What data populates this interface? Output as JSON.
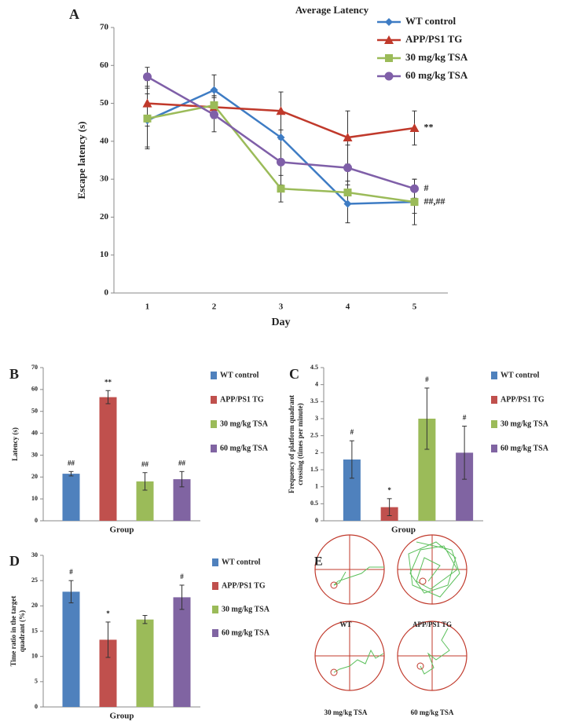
{
  "chart_data": [
    {
      "type": "line",
      "panel": "A",
      "title": "Average Latency",
      "xlabel": "Day",
      "ylabel": "Escape latency (s)",
      "categories": [
        "1",
        "2",
        "3",
        "4",
        "5"
      ],
      "ylim": [
        0,
        70
      ],
      "yticks": [
        0,
        10,
        20,
        30,
        40,
        50,
        60,
        70
      ],
      "series": [
        {
          "name": "WT control",
          "color": "#3e7cc4",
          "marker": "diamond",
          "values": [
            45.5,
            53.5,
            41,
            23.5,
            24
          ],
          "errors": [
            7,
            4,
            7,
            5,
            6
          ]
        },
        {
          "name": "APP/PS1 TG",
          "color": "#c0392b",
          "marker": "triangle",
          "values": [
            50,
            49,
            48,
            41,
            43.5
          ],
          "errors": [
            6,
            3,
            5,
            7,
            4.5
          ],
          "end_label": "**"
        },
        {
          "name": "30 mg/kg TSA",
          "color": "#9bbb59",
          "marker": "square",
          "values": [
            46,
            49.5,
            27.5,
            26.5,
            24
          ],
          "errors": [
            8,
            2.5,
            3.5,
            3,
            3
          ],
          "end_label": "##,##"
        },
        {
          "name": "60 mg/kg TSA",
          "color": "#7f5fa8",
          "marker": "circle",
          "values": [
            57,
            47,
            34.5,
            33,
            27.5
          ],
          "errors": [
            2.5,
            4.5,
            6,
            6,
            2.5
          ],
          "end_label": "#"
        }
      ]
    },
    {
      "type": "bar",
      "panel": "B",
      "xlabel": "Group",
      "ylabel": [
        "Latency (s)"
      ],
      "categories": [
        "WT control",
        "APP/PS1 TG",
        "30 mg/kg TSA",
        "60 mg/kg TSA"
      ],
      "colors": [
        "#4f81bd",
        "#c0504d",
        "#9bbb59",
        "#8064a2"
      ],
      "values": [
        21.5,
        56.5,
        18,
        19
      ],
      "errors": [
        1,
        3,
        4,
        3.5
      ],
      "annotations": [
        "##",
        "**",
        "##",
        "##"
      ],
      "ylim": [
        0,
        70
      ],
      "yticks": [
        0,
        10,
        20,
        30,
        40,
        50,
        60,
        70
      ]
    },
    {
      "type": "bar",
      "panel": "C",
      "xlabel": "Group",
      "ylabel": [
        "Frequency of platform quadrant",
        "crossing (times per minute)"
      ],
      "categories": [
        "WT control",
        "APP/PS1 TG",
        "30 mg/kg TSA",
        "60 mg/kg TSA"
      ],
      "colors": [
        "#4f81bd",
        "#c0504d",
        "#9bbb59",
        "#8064a2"
      ],
      "values": [
        1.8,
        0.4,
        3.0,
        2.0
      ],
      "errors": [
        0.55,
        0.25,
        0.9,
        0.78
      ],
      "annotations": [
        "#",
        "*",
        "#",
        "#"
      ],
      "ylim": [
        0,
        4.5
      ],
      "yticks": [
        0,
        0.5,
        1,
        1.5,
        2,
        2.5,
        3,
        3.5,
        4,
        4.5
      ]
    },
    {
      "type": "bar",
      "panel": "D",
      "xlabel": "Group",
      "ylabel": [
        "Time ratio in the target",
        "quadrant (%)"
      ],
      "categories": [
        "WT control",
        "APP/PS1 TG",
        "30 mg/kg TSA",
        "60 mg/kg TSA"
      ],
      "colors": [
        "#4f81bd",
        "#c0504d",
        "#9bbb59",
        "#8064a2"
      ],
      "values": [
        22.8,
        13.3,
        17.3,
        21.7
      ],
      "errors": [
        2.2,
        3.5,
        0.8,
        2.4
      ],
      "annotations": [
        "#",
        "*",
        null,
        "#"
      ],
      "ylim": [
        0,
        30
      ],
      "yticks": [
        0,
        5,
        10,
        15,
        20,
        25,
        30
      ]
    }
  ],
  "panel_e": {
    "label": "E",
    "captions": [
      "WT",
      "APP/PS1 TG",
      "30 mg/kg TSA",
      "60 mg/kg TSA"
    ]
  }
}
